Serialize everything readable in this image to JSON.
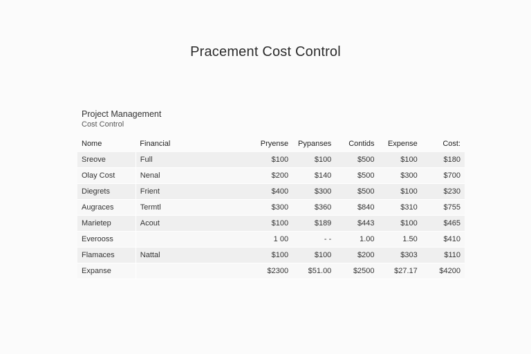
{
  "title": "Pracement Cost Control",
  "project": {
    "name": "Project Management",
    "subtitle": "Cost Control"
  },
  "table": {
    "headers": [
      "Nome",
      "Financial",
      "Pryense",
      "Pypanses",
      "Contids",
      "Expense",
      "Cost:"
    ],
    "rows": [
      [
        "Sreove",
        "Full",
        "$100",
        "$100",
        "$500",
        "$100",
        "$180"
      ],
      [
        "Olay Cost",
        "Nenal",
        "$200",
        "$140",
        "$500",
        "$300",
        "$700"
      ],
      [
        "Diegrets",
        "Frient",
        "$400",
        "$300",
        "$500",
        "$100",
        "$230"
      ],
      [
        "Augraces",
        "Termtl",
        "$300",
        "$360",
        "$840",
        "$310",
        "$755"
      ],
      [
        "Marietep",
        "Acout",
        "$100",
        "$189",
        "$443",
        "$100",
        "$465"
      ],
      [
        "Everooss",
        "",
        "1 00",
        "- -",
        "1.00",
        "1.50",
        "$410"
      ],
      [
        "Flamaces",
        "Nattal",
        "$100",
        "$100",
        "$200",
        "$303",
        "$110"
      ],
      [
        "Expanse",
        "",
        "$2300",
        "$51.00",
        "$2500",
        "$27.17",
        "$4200"
      ]
    ]
  }
}
